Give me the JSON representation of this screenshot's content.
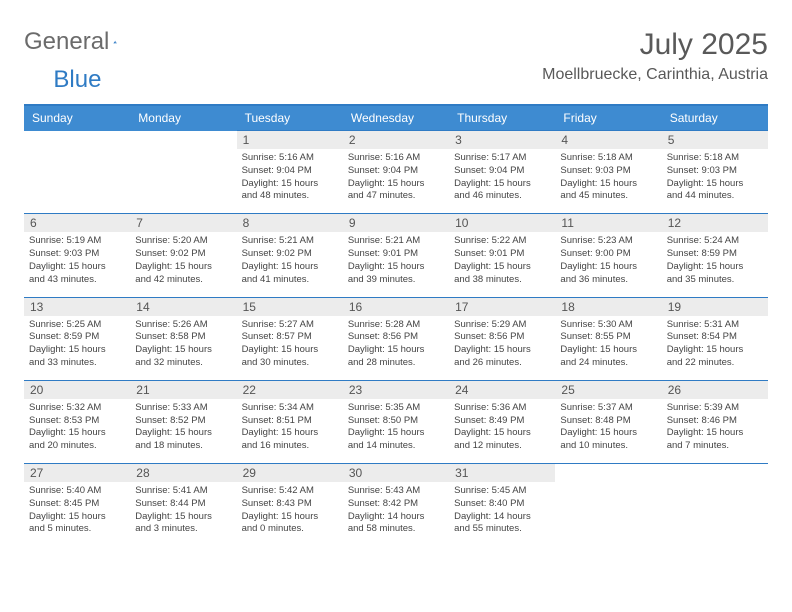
{
  "logo": {
    "text1": "General",
    "text2": "Blue"
  },
  "title": "July 2025",
  "location": "Moellbruecke, Carinthia, Austria",
  "daysOfWeek": [
    "Sunday",
    "Monday",
    "Tuesday",
    "Wednesday",
    "Thursday",
    "Friday",
    "Saturday"
  ],
  "colors": {
    "headerBlue": "#3e8bd1",
    "borderBlue": "#2f7bc4",
    "dayNumBg": "#ececec",
    "textGray": "#595959"
  },
  "firstDayOffset": 2,
  "days": [
    {
      "n": 1,
      "sr": "5:16 AM",
      "ss": "9:04 PM",
      "dh": 15,
      "dm": 48
    },
    {
      "n": 2,
      "sr": "5:16 AM",
      "ss": "9:04 PM",
      "dh": 15,
      "dm": 47
    },
    {
      "n": 3,
      "sr": "5:17 AM",
      "ss": "9:04 PM",
      "dh": 15,
      "dm": 46
    },
    {
      "n": 4,
      "sr": "5:18 AM",
      "ss": "9:03 PM",
      "dh": 15,
      "dm": 45
    },
    {
      "n": 5,
      "sr": "5:18 AM",
      "ss": "9:03 PM",
      "dh": 15,
      "dm": 44
    },
    {
      "n": 6,
      "sr": "5:19 AM",
      "ss": "9:03 PM",
      "dh": 15,
      "dm": 43
    },
    {
      "n": 7,
      "sr": "5:20 AM",
      "ss": "9:02 PM",
      "dh": 15,
      "dm": 42
    },
    {
      "n": 8,
      "sr": "5:21 AM",
      "ss": "9:02 PM",
      "dh": 15,
      "dm": 41
    },
    {
      "n": 9,
      "sr": "5:21 AM",
      "ss": "9:01 PM",
      "dh": 15,
      "dm": 39
    },
    {
      "n": 10,
      "sr": "5:22 AM",
      "ss": "9:01 PM",
      "dh": 15,
      "dm": 38
    },
    {
      "n": 11,
      "sr": "5:23 AM",
      "ss": "9:00 PM",
      "dh": 15,
      "dm": 36
    },
    {
      "n": 12,
      "sr": "5:24 AM",
      "ss": "8:59 PM",
      "dh": 15,
      "dm": 35
    },
    {
      "n": 13,
      "sr": "5:25 AM",
      "ss": "8:59 PM",
      "dh": 15,
      "dm": 33
    },
    {
      "n": 14,
      "sr": "5:26 AM",
      "ss": "8:58 PM",
      "dh": 15,
      "dm": 32
    },
    {
      "n": 15,
      "sr": "5:27 AM",
      "ss": "8:57 PM",
      "dh": 15,
      "dm": 30
    },
    {
      "n": 16,
      "sr": "5:28 AM",
      "ss": "8:56 PM",
      "dh": 15,
      "dm": 28
    },
    {
      "n": 17,
      "sr": "5:29 AM",
      "ss": "8:56 PM",
      "dh": 15,
      "dm": 26
    },
    {
      "n": 18,
      "sr": "5:30 AM",
      "ss": "8:55 PM",
      "dh": 15,
      "dm": 24
    },
    {
      "n": 19,
      "sr": "5:31 AM",
      "ss": "8:54 PM",
      "dh": 15,
      "dm": 22
    },
    {
      "n": 20,
      "sr": "5:32 AM",
      "ss": "8:53 PM",
      "dh": 15,
      "dm": 20
    },
    {
      "n": 21,
      "sr": "5:33 AM",
      "ss": "8:52 PM",
      "dh": 15,
      "dm": 18
    },
    {
      "n": 22,
      "sr": "5:34 AM",
      "ss": "8:51 PM",
      "dh": 15,
      "dm": 16
    },
    {
      "n": 23,
      "sr": "5:35 AM",
      "ss": "8:50 PM",
      "dh": 15,
      "dm": 14
    },
    {
      "n": 24,
      "sr": "5:36 AM",
      "ss": "8:49 PM",
      "dh": 15,
      "dm": 12
    },
    {
      "n": 25,
      "sr": "5:37 AM",
      "ss": "8:48 PM",
      "dh": 15,
      "dm": 10
    },
    {
      "n": 26,
      "sr": "5:39 AM",
      "ss": "8:46 PM",
      "dh": 15,
      "dm": 7
    },
    {
      "n": 27,
      "sr": "5:40 AM",
      "ss": "8:45 PM",
      "dh": 15,
      "dm": 5
    },
    {
      "n": 28,
      "sr": "5:41 AM",
      "ss": "8:44 PM",
      "dh": 15,
      "dm": 3
    },
    {
      "n": 29,
      "sr": "5:42 AM",
      "ss": "8:43 PM",
      "dh": 15,
      "dm": 0
    },
    {
      "n": 30,
      "sr": "5:43 AM",
      "ss": "8:42 PM",
      "dh": 14,
      "dm": 58
    },
    {
      "n": 31,
      "sr": "5:45 AM",
      "ss": "8:40 PM",
      "dh": 14,
      "dm": 55
    }
  ],
  "labels": {
    "sunrise": "Sunrise: ",
    "sunset": "Sunset: ",
    "daylight": "Daylight: ",
    "hoursAnd": " hours and ",
    "minutes": " minutes."
  }
}
